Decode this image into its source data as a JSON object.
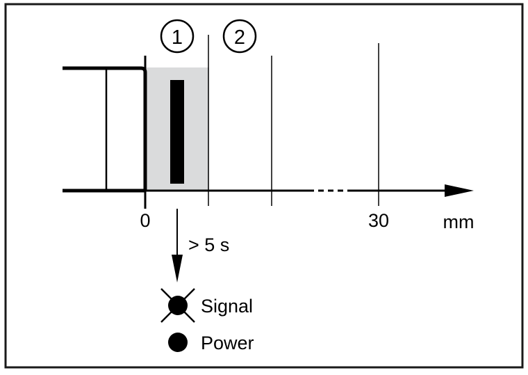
{
  "markers": [
    {
      "label": "1"
    },
    {
      "label": "2"
    }
  ],
  "axis": {
    "tick_zero": "0",
    "tick_thirty": "30",
    "unit": "mm"
  },
  "timing": {
    "label": "> 5 s"
  },
  "legend": {
    "signal": {
      "label": "Signal",
      "icon": "led-off-crossed-icon"
    },
    "power": {
      "label": "Power",
      "icon": "led-on-filled-icon"
    }
  },
  "colors": {
    "stroke": "#000000",
    "zone_fill": "#dadbdc",
    "background": "#ffffff"
  }
}
